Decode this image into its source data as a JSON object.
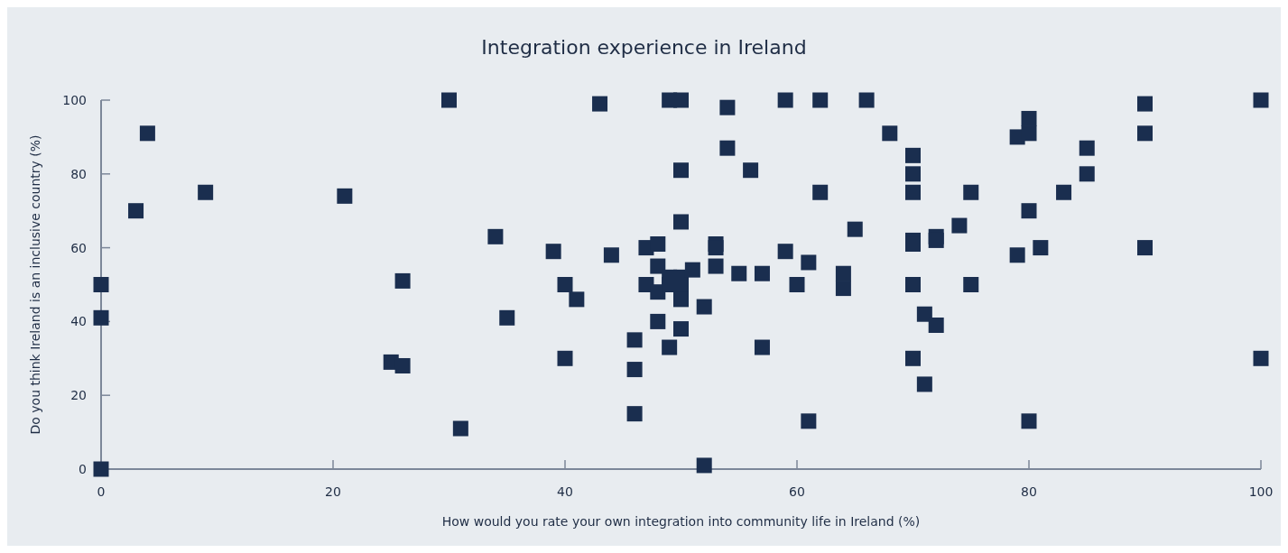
{
  "chart_data": {
    "type": "scatter",
    "title": "Integration experience in Ireland",
    "xlabel": "How would you rate your own integration into community life in Ireland (%)",
    "ylabel": "Do you think Ireland is an inclusive country (%)",
    "xlim": [
      0,
      100
    ],
    "ylim": [
      0,
      100
    ],
    "xticks": [
      0,
      20,
      40,
      60,
      80,
      100
    ],
    "yticks": [
      0,
      20,
      40,
      60,
      80,
      100
    ],
    "grid": false,
    "marker": "square",
    "series": [
      {
        "color": "#1a2e4f",
        "x": [
          0,
          0,
          0,
          3,
          4,
          9,
          21,
          25,
          26,
          26,
          30,
          31,
          34,
          35,
          39,
          40,
          40,
          41,
          43,
          44,
          46,
          46,
          46,
          47,
          47,
          48,
          48,
          48,
          48,
          49,
          49,
          49,
          49,
          50,
          50,
          50,
          50,
          50,
          50,
          50,
          51,
          52,
          52,
          53,
          53,
          53,
          54,
          54,
          55,
          56,
          57,
          57,
          59,
          59,
          60,
          61,
          61,
          62,
          62,
          64,
          64,
          65,
          66,
          68,
          70,
          70,
          70,
          70,
          70,
          70,
          70,
          71,
          71,
          72,
          72,
          72,
          74,
          75,
          75,
          79,
          79,
          80,
          80,
          80,
          80,
          81,
          83,
          85,
          85,
          90,
          90,
          90,
          100,
          100
        ],
        "values": [
          50,
          41,
          0,
          70,
          91,
          75,
          74,
          29,
          28,
          51,
          100,
          11,
          63,
          41,
          59,
          50,
          30,
          46,
          99,
          58,
          35,
          27,
          15,
          60,
          50,
          61,
          55,
          48,
          40,
          100,
          52,
          50,
          33,
          100,
          81,
          67,
          52,
          50,
          46,
          38,
          54,
          44,
          1,
          61,
          60,
          55,
          98,
          87,
          53,
          81,
          53,
          33,
          100,
          59,
          50,
          56,
          13,
          100,
          75,
          53,
          49,
          65,
          100,
          91,
          85,
          80,
          75,
          62,
          61,
          50,
          30,
          42,
          23,
          63,
          62,
          39,
          66,
          75,
          50,
          90,
          58,
          95,
          91,
          70,
          13,
          60,
          75,
          87,
          80,
          99,
          91,
          60,
          100,
          30
        ]
      }
    ]
  }
}
